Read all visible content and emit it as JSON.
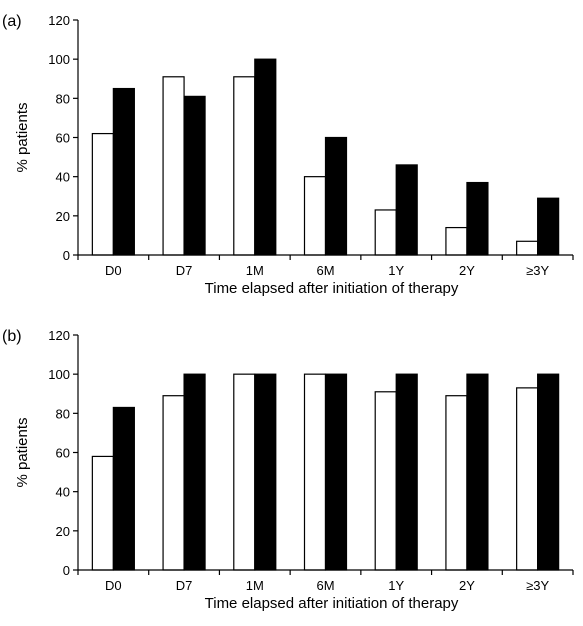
{
  "chart_data": [
    {
      "type": "bar",
      "panel_label": "(a)",
      "categories": [
        "D0",
        "D7",
        "1M",
        "6M",
        "1Y",
        "2Y",
        "≥3Y"
      ],
      "series": [
        {
          "fill": "#ffffff",
          "values": [
            62,
            91,
            91,
            40,
            23,
            14,
            7
          ]
        },
        {
          "fill": "#000000",
          "values": [
            85,
            81,
            100,
            60,
            46,
            37,
            29
          ]
        }
      ],
      "xlabel": "Time elapsed after initiation of therapy",
      "ylabel": "% patients",
      "ylim": [
        0,
        120
      ],
      "yticks": [
        0,
        20,
        40,
        60,
        80,
        100,
        120
      ],
      "grid": false
    },
    {
      "type": "bar",
      "panel_label": "(b)",
      "categories": [
        "D0",
        "D7",
        "1M",
        "6M",
        "1Y",
        "2Y",
        "≥3Y"
      ],
      "series": [
        {
          "fill": "#ffffff",
          "values": [
            58,
            89,
            100,
            100,
            91,
            89,
            93
          ]
        },
        {
          "fill": "#000000",
          "values": [
            83,
            100,
            100,
            100,
            100,
            100,
            100
          ]
        }
      ],
      "xlabel": "Time elapsed after initiation of therapy",
      "ylabel": "% patients",
      "ylim": [
        0,
        120
      ],
      "yticks": [
        0,
        20,
        40,
        60,
        80,
        100,
        120
      ],
      "grid": false
    }
  ]
}
